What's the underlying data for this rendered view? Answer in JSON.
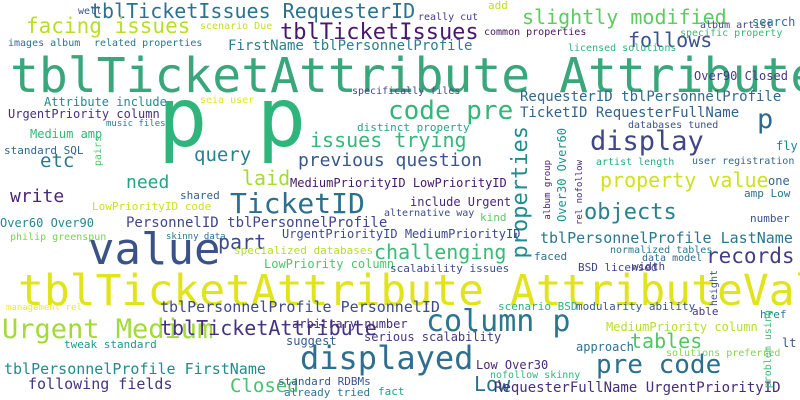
{
  "background": "#ffffff",
  "words": [
    {
      "text": "tblTicketAttribute Attribute",
      "color": "#3aa67b"
    },
    {
      "text": "tblTicketAttribute AttributeValue",
      "color": "#e1e31b"
    },
    {
      "text": "p p",
      "color": "#2fb57b"
    },
    {
      "text": "value",
      "color": "#3b5289"
    },
    {
      "text": "TicketID",
      "color": "#2b708e"
    },
    {
      "text": "column p",
      "color": "#2a768e"
    },
    {
      "text": "displayed",
      "color": "#2e6e8e"
    },
    {
      "text": "Urgent Medium",
      "color": "#a2da37"
    },
    {
      "text": "code pre",
      "color": "#34b679"
    },
    {
      "text": "pre code",
      "color": "#2b6f8e"
    },
    {
      "text": "display",
      "color": "#3f4788"
    },
    {
      "text": "tblTicketIssues",
      "color": "#48186a"
    },
    {
      "text": "tblTicketIssues RequesterID",
      "color": "#2d718e"
    },
    {
      "text": "facing issues",
      "color": "#bade28"
    },
    {
      "text": "slightly modified",
      "color": "#5fca61"
    },
    {
      "text": "follows",
      "color": "#3b528b"
    },
    {
      "text": "FirstName tblPersonnelProfile",
      "color": "#2c7e8e"
    },
    {
      "text": "property value",
      "color": "#d0e11c"
    },
    {
      "text": "properties",
      "color": "#238a8d"
    },
    {
      "text": "objects",
      "color": "#26828e"
    },
    {
      "text": "issues trying",
      "color": "#35b779"
    },
    {
      "text": "previous question",
      "color": "#39568c"
    },
    {
      "text": "challenging",
      "color": "#3aba76"
    },
    {
      "text": "records",
      "color": "#433e85"
    },
    {
      "text": "tables",
      "color": "#52c569"
    },
    {
      "text": "part",
      "color": "#3e4a89"
    },
    {
      "text": "query",
      "color": "#26828e"
    },
    {
      "text": "need",
      "color": "#20a386"
    },
    {
      "text": "laid",
      "color": "#a5db36"
    },
    {
      "text": "etc",
      "color": "#2a788e"
    },
    {
      "text": "write",
      "color": "#482777"
    },
    {
      "text": "p",
      "color": "#31668e"
    },
    {
      "text": "tblTicketAttribute",
      "color": "#46327e"
    },
    {
      "text": "tblPersonnelProfile PersonnelID",
      "color": "#3e4a89"
    },
    {
      "text": "tblPersonnelProfile FirstName",
      "color": "#238a8d"
    },
    {
      "text": "Closed",
      "color": "#4ac16d"
    },
    {
      "text": "Low",
      "color": "#2d718e"
    },
    {
      "text": "RequesterID tblPersonnelProfile",
      "color": "#31688e"
    },
    {
      "text": "TicketID RequesterFullName",
      "color": "#33628d"
    },
    {
      "text": "tblPersonnelProfile LastName",
      "color": "#2a778e"
    },
    {
      "text": "Over90 Closed",
      "color": "#443a83"
    },
    {
      "text": "following fields",
      "color": "#453581"
    },
    {
      "text": "RequesterFullName UrgentPriorityID",
      "color": "#472d7b"
    },
    {
      "text": "MediumPriorityID LowPriorityID",
      "color": "#481769"
    },
    {
      "text": "UrgentPriorityID MediumPriorityID",
      "color": "#3e4989"
    },
    {
      "text": "PersonnelID tblPersonnelProfile",
      "color": "#404688"
    },
    {
      "text": "Attribute include",
      "color": "#23898e"
    },
    {
      "text": "UrgentPriority column",
      "color": "#46307e"
    },
    {
      "text": "include Urgent",
      "color": "#482878"
    },
    {
      "text": "LowPriority column",
      "color": "#4ec36b"
    },
    {
      "text": "MediumPriority column",
      "color": "#b8de29"
    },
    {
      "text": "Over60 Over90",
      "color": "#24878e"
    },
    {
      "text": "arbitrary number",
      "color": "#472a7a"
    },
    {
      "text": "serious scalability",
      "color": "#443983"
    },
    {
      "text": "scalability issues",
      "color": "#3d4e8a"
    },
    {
      "text": "standard SQL",
      "color": "#32648e"
    },
    {
      "text": "Medium amp",
      "color": "#32b67a"
    },
    {
      "text": "LowPriorityID code",
      "color": "#cae11f"
    },
    {
      "text": "suggest",
      "color": "#365c8d"
    },
    {
      "text": "approach",
      "color": "#2b748e"
    },
    {
      "text": "tweak standard",
      "color": "#1f968b"
    },
    {
      "text": "distinct property",
      "color": "#20a486"
    },
    {
      "text": "specialized databases",
      "color": "#b5de2b"
    },
    {
      "text": "Over30 Over60",
      "color": "#20938c"
    },
    {
      "text": "standard RDBMs",
      "color": "#3a548c"
    },
    {
      "text": "already tried",
      "color": "#2a778e"
    },
    {
      "text": "fact",
      "color": "#1fa088"
    },
    {
      "text": "Low Over30",
      "color": "#482979"
    },
    {
      "text": "nofollow skinny",
      "color": "#31b57b"
    },
    {
      "text": "BSD licensed",
      "color": "#404588"
    },
    {
      "text": "width",
      "color": "#443b84"
    },
    {
      "text": "normalized tables",
      "color": "#2a778e"
    },
    {
      "text": "data model",
      "color": "#2f6b8e"
    },
    {
      "text": "scenario BSD",
      "color": "#2ab07f"
    },
    {
      "text": "modularity ability",
      "color": "#38598c"
    },
    {
      "text": "able",
      "color": "#453781"
    },
    {
      "text": "solutions preferred",
      "color": "#84d44b"
    },
    {
      "text": "related properties",
      "color": "#2b758e"
    },
    {
      "text": "images album",
      "color": "#2c718e"
    },
    {
      "text": "common properties",
      "color": "#481467"
    },
    {
      "text": "licensed solutions",
      "color": "#2db27d"
    },
    {
      "text": "specific property",
      "color": "#38b977"
    },
    {
      "text": "album artist",
      "color": "#3f4889"
    },
    {
      "text": "search",
      "color": "#2c728e"
    },
    {
      "text": "one",
      "color": "#34608d"
    },
    {
      "text": "add",
      "color": "#c2df23"
    },
    {
      "text": "really cut",
      "color": "#433d84"
    },
    {
      "text": "well",
      "color": "#3b518b"
    },
    {
      "text": "scenario Due",
      "color": "#c5e021"
    },
    {
      "text": "specifically files",
      "color": "#3f4889"
    },
    {
      "text": "seia user",
      "color": "#e7e419"
    },
    {
      "text": "music files",
      "color": "#277f8e"
    },
    {
      "text": "databases tuned",
      "color": "#3b528b"
    },
    {
      "text": "artist length",
      "color": "#23a983"
    },
    {
      "text": "user registration",
      "color": "#2e6d8e"
    },
    {
      "text": "fly",
      "color": "#25838e"
    },
    {
      "text": "amp Low",
      "color": "#2c728e"
    },
    {
      "text": "number",
      "color": "#3a548c"
    },
    {
      "text": "href",
      "color": "#26828e"
    },
    {
      "text": "lt",
      "color": "#38598c"
    },
    {
      "text": "album group",
      "color": "#481c6e"
    },
    {
      "text": "rel nofollow",
      "color": "#482374"
    },
    {
      "text": "kind",
      "color": "#5ec962"
    },
    {
      "text": "height",
      "color": "#3b528b"
    },
    {
      "text": "problem using",
      "color": "#3fbc73"
    },
    {
      "text": "alternative way",
      "color": "#3e4c8a"
    },
    {
      "text": "faced",
      "color": "#2c728e"
    },
    {
      "text": "shared",
      "color": "#355e8d"
    },
    {
      "text": "skinny data",
      "color": "#2c728e"
    },
    {
      "text": "philip greenspun",
      "color": "#7ad151"
    },
    {
      "text": "pairs",
      "color": "#56c667"
    },
    {
      "text": "management rel",
      "color": "#fde725"
    }
  ]
}
